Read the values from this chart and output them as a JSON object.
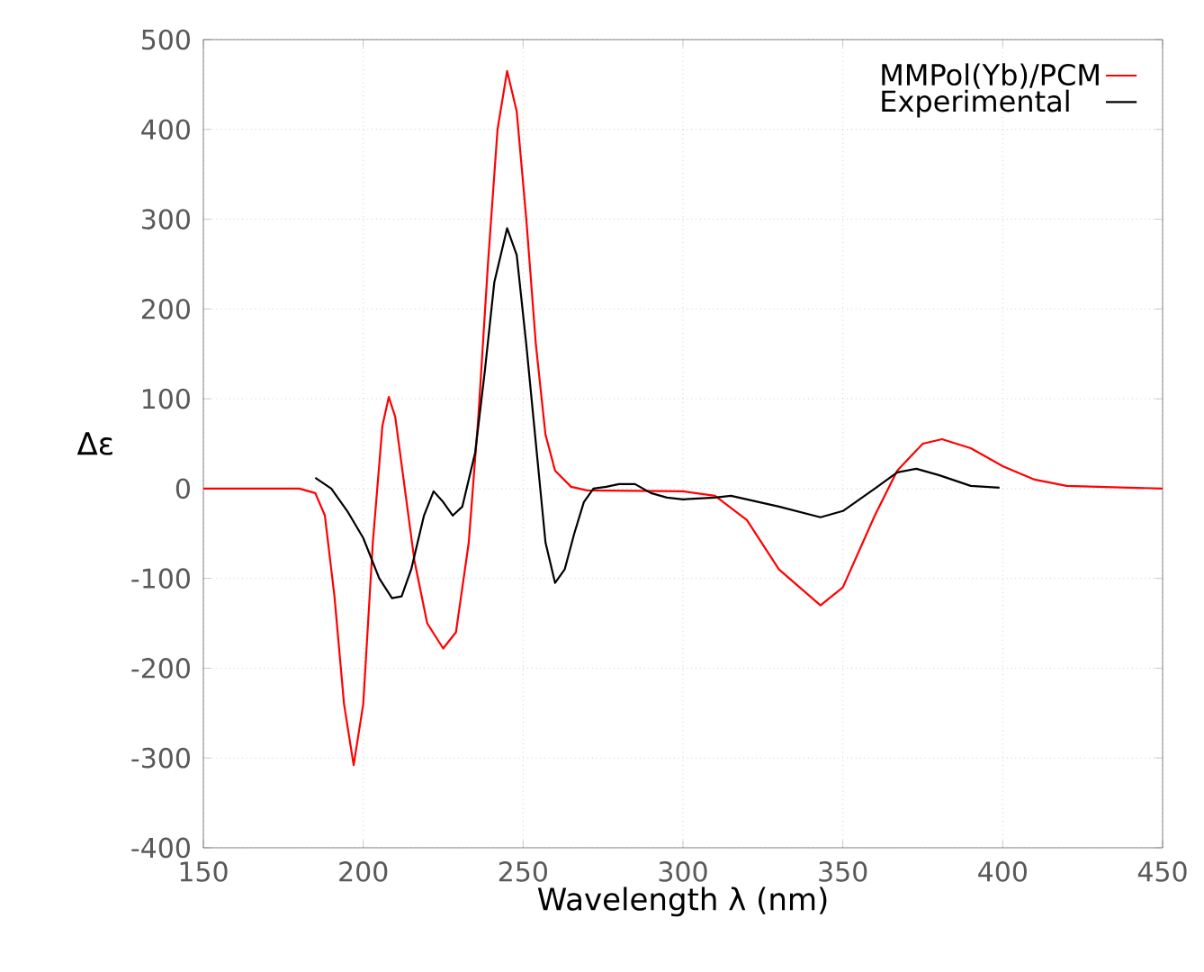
{
  "chart_data": {
    "type": "line",
    "xlabel": "Wavelength λ (nm)",
    "ylabel": "Δε",
    "xlim": [
      150,
      450
    ],
    "xticks": [
      150,
      200,
      250,
      300,
      350,
      400,
      450
    ],
    "ylim": [
      -400,
      500
    ],
    "yticks": [
      -400,
      -300,
      -200,
      -100,
      0,
      100,
      200,
      300,
      400,
      500
    ],
    "grid": true,
    "legend": "top right",
    "line_style": "solid",
    "marker": "none",
    "series": [
      {
        "name": "MMPol(Yb)/PCM",
        "color": "#ff0000",
        "x": [
          150,
          180,
          185,
          188,
          191,
          194,
          197,
          200,
          203,
          206,
          208,
          210,
          213,
          216,
          220,
          225,
          229,
          233,
          236,
          239,
          242,
          245,
          248,
          251,
          254,
          257,
          260,
          265,
          270,
          300,
          310,
          320,
          330,
          343,
          350,
          360,
          367,
          375,
          381,
          390,
          400,
          410,
          420,
          450
        ],
        "values": [
          0,
          0,
          -5,
          -30,
          -120,
          -240,
          -308,
          -240,
          -60,
          70,
          102,
          80,
          0,
          -80,
          -150,
          -178,
          -160,
          -60,
          80,
          250,
          400,
          465,
          420,
          300,
          160,
          60,
          20,
          2,
          -2,
          -3,
          -8,
          -35,
          -90,
          -130,
          -110,
          -30,
          20,
          50,
          55,
          45,
          25,
          10,
          3,
          0
        ]
      },
      {
        "name": "Experimental",
        "color": "#000000",
        "x": [
          185,
          190,
          195,
          200,
          205,
          209,
          212,
          215,
          219,
          222,
          225,
          228,
          231,
          235,
          238,
          241,
          245,
          248,
          251,
          254,
          257,
          260,
          263,
          266,
          269,
          272,
          276,
          280,
          285,
          290,
          295,
          300,
          310,
          315,
          320,
          330,
          343,
          350,
          360,
          367,
          373,
          380,
          390,
          399
        ],
        "values": [
          12,
          0,
          -25,
          -55,
          -100,
          -122,
          -120,
          -90,
          -30,
          -3,
          -15,
          -30,
          -20,
          40,
          130,
          230,
          290,
          260,
          160,
          50,
          -60,
          -105,
          -90,
          -50,
          -15,
          0,
          2,
          5,
          5,
          -5,
          -10,
          -12,
          -10,
          -8,
          -12,
          -20,
          -32,
          -25,
          0,
          18,
          22,
          15,
          3,
          1
        ]
      }
    ]
  }
}
